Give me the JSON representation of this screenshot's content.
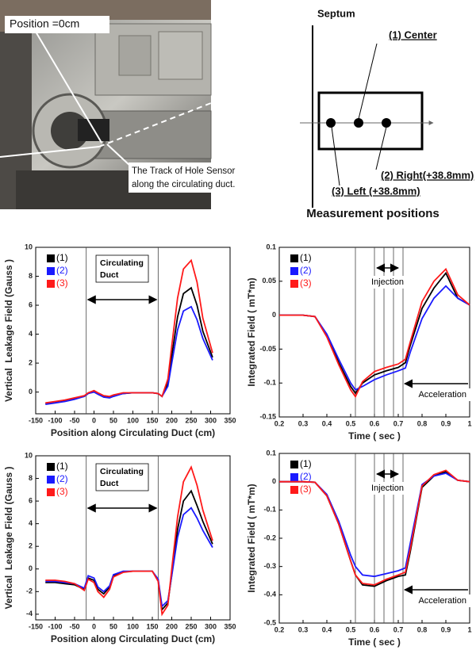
{
  "photo": {
    "position_label": "Position =0cm",
    "track_label": [
      "The Track of Hole Sensor",
      "along the circulating duct."
    ]
  },
  "diagram": {
    "septum": "Septum",
    "center": "(1) Center",
    "right": "(2) Right(+38.8mm)",
    "left": "(3) Left (+38.8mm)",
    "caption": "Measurement positions"
  },
  "chart_data": [
    {
      "type": "line",
      "xlabel": "Position along Circulating Duct (cm)",
      "ylabel": "Vertical  Leakage Field (Gauss )",
      "xlim": [
        -150,
        350
      ],
      "ylim": [
        -1.5,
        10
      ],
      "xticks": [
        -150,
        -100,
        -50,
        0,
        50,
        100,
        150,
        200,
        250,
        300,
        350
      ],
      "yticks": [
        0,
        2,
        4,
        6,
        8,
        10
      ],
      "vlines": [
        -20,
        165
      ],
      "annotation": [
        "Circulating",
        "Duct"
      ],
      "x": [
        -125,
        -100,
        -75,
        -50,
        -25,
        -15,
        0,
        10,
        25,
        40,
        50,
        75,
        100,
        125,
        150,
        165,
        175,
        190,
        200,
        215,
        230,
        250,
        265,
        280,
        305
      ],
      "series": [
        {
          "name": "(1)",
          "color": "#000000",
          "values": [
            -0.8,
            -0.7,
            -0.6,
            -0.45,
            -0.3,
            -0.1,
            0.05,
            -0.1,
            -0.3,
            -0.35,
            -0.25,
            -0.1,
            -0.05,
            -0.05,
            -0.05,
            -0.1,
            -0.3,
            0.6,
            2.5,
            5.2,
            6.8,
            7.2,
            6.0,
            4.2,
            2.4
          ]
        },
        {
          "name": "(2)",
          "color": "#1a1aff",
          "values": [
            -0.85,
            -0.75,
            -0.65,
            -0.5,
            -0.3,
            -0.1,
            0.0,
            -0.15,
            -0.35,
            -0.4,
            -0.3,
            -0.1,
            -0.05,
            -0.05,
            -0.05,
            -0.1,
            -0.3,
            0.4,
            2.0,
            4.3,
            5.6,
            5.9,
            5.0,
            3.7,
            2.2
          ]
        },
        {
          "name": "(3)",
          "color": "#ff1a1a",
          "values": [
            -0.75,
            -0.65,
            -0.55,
            -0.4,
            -0.25,
            -0.05,
            0.1,
            -0.05,
            -0.25,
            -0.3,
            -0.2,
            -0.05,
            -0.05,
            -0.05,
            -0.05,
            -0.1,
            -0.3,
            0.9,
            3.2,
            6.5,
            8.5,
            9.1,
            7.6,
            5.1,
            2.7
          ]
        }
      ]
    },
    {
      "type": "line",
      "xlabel": "Time ( sec )",
      "ylabel": "Integrated Field ( mT*m)",
      "xlim": [
        0.2,
        1
      ],
      "ylim": [
        -0.15,
        0.1
      ],
      "xticks": [
        0.2,
        0.3,
        0.4,
        0.5,
        0.6,
        0.7,
        0.8,
        0.9,
        1
      ],
      "yticks": [
        -0.15,
        -0.1,
        -0.05,
        0,
        0.05,
        0.1
      ],
      "vlines": [
        0.52,
        0.6,
        0.64,
        0.68,
        0.72
      ],
      "injection": "Injection",
      "acceleration": "Acceleration",
      "x": [
        0.2,
        0.3,
        0.35,
        0.4,
        0.45,
        0.5,
        0.52,
        0.55,
        0.6,
        0.65,
        0.7,
        0.73,
        0.75,
        0.8,
        0.85,
        0.9,
        0.95,
        1.0
      ],
      "series": [
        {
          "name": "(1)",
          "color": "#000000",
          "values": [
            0,
            0,
            -0.002,
            -0.03,
            -0.07,
            -0.105,
            -0.115,
            -0.1,
            -0.088,
            -0.082,
            -0.077,
            -0.07,
            -0.045,
            0.01,
            0.04,
            0.062,
            0.025,
            0.015
          ]
        },
        {
          "name": "(2)",
          "color": "#1a1aff",
          "values": [
            0,
            0,
            -0.002,
            -0.028,
            -0.065,
            -0.1,
            -0.11,
            -0.105,
            -0.095,
            -0.088,
            -0.082,
            -0.078,
            -0.055,
            -0.005,
            0.025,
            0.043,
            0.025,
            0.015
          ]
        },
        {
          "name": "(3)",
          "color": "#ff1a1a",
          "values": [
            0,
            0,
            -0.002,
            -0.032,
            -0.073,
            -0.11,
            -0.12,
            -0.098,
            -0.083,
            -0.077,
            -0.072,
            -0.065,
            -0.04,
            0.02,
            0.05,
            0.068,
            0.03,
            0.015
          ]
        }
      ]
    },
    {
      "type": "line",
      "xlabel": "Position along Circulating Duct (cm)",
      "ylabel": "Vertical  Leakage Field (Gauss )",
      "xlim": [
        -150,
        350
      ],
      "ylim": [
        -4.5,
        10
      ],
      "xticks": [
        -150,
        -100,
        -50,
        0,
        50,
        100,
        150,
        200,
        250,
        300,
        350
      ],
      "yticks": [
        -4,
        -2,
        0,
        2,
        4,
        6,
        8,
        10
      ],
      "vlines": [
        -20,
        165
      ],
      "annotation": [
        "Circulating",
        "Duct"
      ],
      "x": [
        -125,
        -100,
        -75,
        -50,
        -25,
        -15,
        0,
        10,
        25,
        40,
        50,
        75,
        100,
        125,
        150,
        165,
        175,
        190,
        200,
        215,
        230,
        250,
        265,
        280,
        305
      ],
      "series": [
        {
          "name": "(1)",
          "color": "#000000",
          "values": [
            -1.2,
            -1.2,
            -1.3,
            -1.4,
            -1.8,
            -0.8,
            -1.0,
            -1.8,
            -2.2,
            -1.6,
            -0.6,
            -0.25,
            -0.2,
            -0.2,
            -0.2,
            -1.0,
            -3.6,
            -3.0,
            -0.5,
            3.5,
            6.0,
            6.9,
            5.6,
            4.2,
            2.2
          ]
        },
        {
          "name": "(2)",
          "color": "#1a1aff",
          "values": [
            -1.1,
            -1.1,
            -1.2,
            -1.3,
            -1.7,
            -0.6,
            -0.8,
            -1.6,
            -2.0,
            -1.5,
            -0.5,
            -0.2,
            -0.2,
            -0.2,
            -0.2,
            -0.9,
            -3.3,
            -2.8,
            -0.6,
            2.8,
            4.8,
            5.4,
            4.5,
            3.4,
            1.9
          ]
        },
        {
          "name": "(3)",
          "color": "#ff1a1a",
          "values": [
            -1.0,
            -1.0,
            -1.1,
            -1.3,
            -1.9,
            -0.9,
            -1.2,
            -2.0,
            -2.5,
            -1.8,
            -0.7,
            -0.3,
            -0.2,
            -0.2,
            -0.2,
            -1.1,
            -4.0,
            -3.2,
            0.0,
            4.6,
            7.7,
            9.0,
            7.4,
            5.2,
            2.5
          ]
        }
      ]
    },
    {
      "type": "line",
      "xlabel": "Time ( sec )",
      "ylabel": "Integrated Field ( mT*m)",
      "xlim": [
        0.2,
        1
      ],
      "ylim": [
        -0.5,
        0.1
      ],
      "xticks": [
        0.2,
        0.3,
        0.4,
        0.5,
        0.6,
        0.7,
        0.8,
        0.9,
        1
      ],
      "yticks": [
        -0.5,
        -0.4,
        -0.3,
        -0.2,
        -0.1,
        0,
        0.1
      ],
      "vlines": [
        0.52,
        0.6,
        0.64,
        0.68,
        0.72
      ],
      "injection": "Injection",
      "acceleration": "Acceleration",
      "x": [
        0.2,
        0.3,
        0.35,
        0.4,
        0.45,
        0.5,
        0.52,
        0.55,
        0.6,
        0.65,
        0.7,
        0.73,
        0.75,
        0.8,
        0.85,
        0.9,
        0.95,
        1.0
      ],
      "series": [
        {
          "name": "(1)",
          "color": "#000000",
          "values": [
            0,
            0,
            -0.002,
            -0.05,
            -0.15,
            -0.28,
            -0.33,
            -0.365,
            -0.37,
            -0.35,
            -0.335,
            -0.33,
            -0.25,
            -0.02,
            0.02,
            0.035,
            0.005,
            0
          ]
        },
        {
          "name": "(2)",
          "color": "#1a1aff",
          "values": [
            0,
            0,
            -0.002,
            -0.045,
            -0.14,
            -0.26,
            -0.3,
            -0.33,
            -0.335,
            -0.325,
            -0.315,
            -0.305,
            -0.22,
            -0.01,
            0.02,
            0.03,
            0.005,
            0
          ]
        },
        {
          "name": "(3)",
          "color": "#ff1a1a",
          "values": [
            0,
            0,
            -0.002,
            -0.05,
            -0.15,
            -0.28,
            -0.33,
            -0.36,
            -0.365,
            -0.345,
            -0.33,
            -0.32,
            -0.24,
            -0.015,
            0.025,
            0.04,
            0.005,
            0
          ]
        }
      ]
    }
  ]
}
